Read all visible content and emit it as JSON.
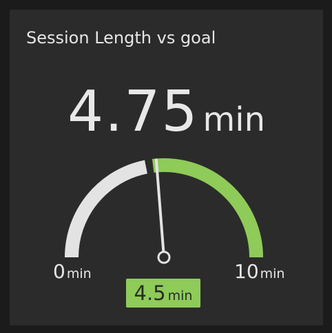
{
  "chart_data": {
    "type": "gauge",
    "title": "Session Length vs goal",
    "value": 4.75,
    "value_text": "4.75",
    "unit": "min",
    "min": 0,
    "min_text": "0",
    "max": 10,
    "max_text": "10",
    "goal": 4.5,
    "goal_text": "4.5",
    "colors": {
      "below_goal": "#e3e3e3",
      "above_goal": "#8fcb58",
      "needle": "#e3e3e3",
      "goal_badge": "#8fcb58"
    }
  }
}
